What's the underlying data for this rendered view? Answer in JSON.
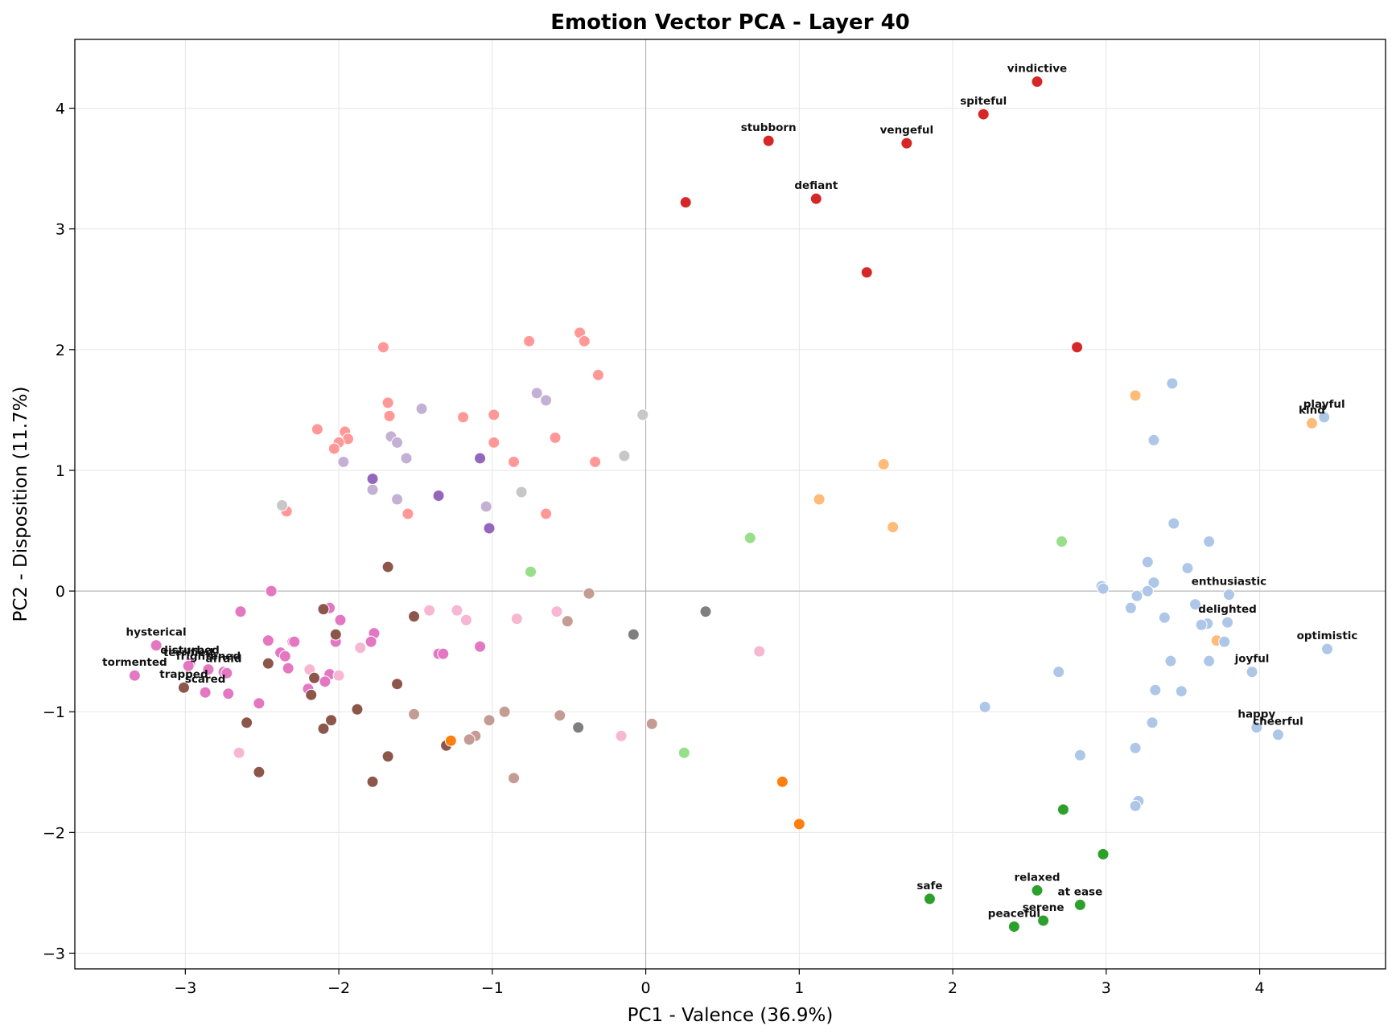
{
  "chart_data": {
    "type": "scatter",
    "title": "Emotion Vector PCA - Layer 40",
    "xlabel": "PC1 - Valence (36.9%)",
    "ylabel": "PC2 - Disposition (11.7%)",
    "xlim": [
      -3.72,
      4.82
    ],
    "ylim": [
      -3.13,
      4.57
    ],
    "xticks": [
      -3,
      -2,
      -1,
      0,
      1,
      2,
      3,
      4
    ],
    "yticks": [
      -3,
      -2,
      -1,
      0,
      1,
      2,
      3,
      4
    ],
    "grid": true,
    "zero_lines": true,
    "colors": {
      "red": "#d62728",
      "lightred": "#ff9896",
      "lightpurple": "#c5b0d5",
      "purple": "#9467bd",
      "pink": "#e377c2",
      "lightpink": "#f7b6d2",
      "brown": "#8c564b",
      "lightbrown": "#c49c94",
      "gray": "#7f7f7f",
      "lightgray": "#c7c7c7",
      "orange": "#ff7f0e",
      "lightorange": "#ffbb78",
      "green": "#2ca02c",
      "lightgreen": "#98df8a",
      "lightblue": "#aec7e8"
    },
    "points": [
      {
        "x": 2.55,
        "y": 4.22,
        "c": "red",
        "label": "vindictive"
      },
      {
        "x": 2.2,
        "y": 3.95,
        "c": "red",
        "label": "spiteful"
      },
      {
        "x": 0.8,
        "y": 3.73,
        "c": "red",
        "label": "stubborn"
      },
      {
        "x": 1.7,
        "y": 3.71,
        "c": "red",
        "label": "vengeful"
      },
      {
        "x": 1.11,
        "y": 3.25,
        "c": "red",
        "label": "defiant"
      },
      {
        "x": 0.26,
        "y": 3.22,
        "c": "red"
      },
      {
        "x": 1.44,
        "y": 2.64,
        "c": "red"
      },
      {
        "x": 2.81,
        "y": 2.02,
        "c": "red"
      },
      {
        "x": -1.71,
        "y": 2.02,
        "c": "lightred"
      },
      {
        "x": -0.76,
        "y": 2.07,
        "c": "lightred"
      },
      {
        "x": -0.43,
        "y": 2.14,
        "c": "lightred"
      },
      {
        "x": -0.4,
        "y": 2.07,
        "c": "lightred"
      },
      {
        "x": -0.31,
        "y": 1.79,
        "c": "lightred"
      },
      {
        "x": -1.68,
        "y": 1.56,
        "c": "lightred"
      },
      {
        "x": -1.67,
        "y": 1.45,
        "c": "lightred"
      },
      {
        "x": -1.19,
        "y": 1.44,
        "c": "lightred"
      },
      {
        "x": -0.99,
        "y": 1.46,
        "c": "lightred"
      },
      {
        "x": -2.14,
        "y": 1.34,
        "c": "lightred"
      },
      {
        "x": -1.96,
        "y": 1.32,
        "c": "lightred"
      },
      {
        "x": -1.94,
        "y": 1.26,
        "c": "lightred"
      },
      {
        "x": -2.0,
        "y": 1.23,
        "c": "lightred"
      },
      {
        "x": -2.03,
        "y": 1.18,
        "c": "lightred"
      },
      {
        "x": -0.99,
        "y": 1.23,
        "c": "lightred"
      },
      {
        "x": -0.59,
        "y": 1.27,
        "c": "lightred"
      },
      {
        "x": -0.86,
        "y": 1.07,
        "c": "lightred"
      },
      {
        "x": -0.33,
        "y": 1.07,
        "c": "lightred"
      },
      {
        "x": -2.34,
        "y": 0.66,
        "c": "lightred"
      },
      {
        "x": -1.55,
        "y": 0.64,
        "c": "lightred"
      },
      {
        "x": -0.65,
        "y": 0.64,
        "c": "lightred"
      },
      {
        "x": -0.71,
        "y": 1.64,
        "c": "lightpurple"
      },
      {
        "x": -0.65,
        "y": 1.58,
        "c": "lightpurple"
      },
      {
        "x": -1.46,
        "y": 1.51,
        "c": "lightpurple"
      },
      {
        "x": -1.66,
        "y": 1.28,
        "c": "lightpurple"
      },
      {
        "x": -1.62,
        "y": 1.23,
        "c": "lightpurple"
      },
      {
        "x": -1.56,
        "y": 1.1,
        "c": "lightpurple"
      },
      {
        "x": -1.97,
        "y": 1.07,
        "c": "lightpurple"
      },
      {
        "x": -1.78,
        "y": 0.84,
        "c": "lightpurple"
      },
      {
        "x": -1.62,
        "y": 0.76,
        "c": "lightpurple"
      },
      {
        "x": -1.04,
        "y": 0.7,
        "c": "lightpurple"
      },
      {
        "x": -1.08,
        "y": 1.1,
        "c": "purple"
      },
      {
        "x": -1.78,
        "y": 0.93,
        "c": "purple"
      },
      {
        "x": -1.35,
        "y": 0.79,
        "c": "purple"
      },
      {
        "x": -1.02,
        "y": 0.52,
        "c": "purple"
      },
      {
        "x": -0.02,
        "y": 1.46,
        "c": "lightgray"
      },
      {
        "x": -0.14,
        "y": 1.12,
        "c": "lightgray"
      },
      {
        "x": -0.81,
        "y": 0.82,
        "c": "lightgray"
      },
      {
        "x": -2.37,
        "y": 0.71,
        "c": "lightgray"
      },
      {
        "x": -3.19,
        "y": -0.45,
        "c": "pink",
        "label": "hysterical"
      },
      {
        "x": -2.97,
        "y": -0.6,
        "c": "pink",
        "label": "disturbed"
      },
      {
        "x": -2.98,
        "y": -0.62,
        "c": "pink",
        "label": "terrified"
      },
      {
        "x": -2.85,
        "y": -0.65,
        "c": "pink",
        "label": "frightened"
      },
      {
        "x": -2.75,
        "y": -0.67,
        "c": "pink",
        "label": "afraid"
      },
      {
        "x": -3.33,
        "y": -0.7,
        "c": "pink",
        "label": "tormented"
      },
      {
        "x": -2.87,
        "y": -0.84,
        "c": "pink",
        "label": "scared"
      },
      {
        "x": -2.44,
        "y": 0.0,
        "c": "pink"
      },
      {
        "x": -2.64,
        "y": -0.17,
        "c": "pink"
      },
      {
        "x": -2.06,
        "y": -0.14,
        "c": "pink"
      },
      {
        "x": -1.99,
        "y": -0.24,
        "c": "pink"
      },
      {
        "x": -1.77,
        "y": -0.35,
        "c": "pink"
      },
      {
        "x": -2.46,
        "y": -0.41,
        "c": "pink"
      },
      {
        "x": -2.3,
        "y": -0.42,
        "c": "pink"
      },
      {
        "x": -2.29,
        "y": -0.42,
        "c": "pink"
      },
      {
        "x": -2.02,
        "y": -0.42,
        "c": "pink"
      },
      {
        "x": -1.79,
        "y": -0.42,
        "c": "pink"
      },
      {
        "x": -2.38,
        "y": -0.51,
        "c": "pink"
      },
      {
        "x": -2.35,
        "y": -0.54,
        "c": "pink"
      },
      {
        "x": -1.35,
        "y": -0.52,
        "c": "pink"
      },
      {
        "x": -1.32,
        "y": -0.52,
        "c": "pink"
      },
      {
        "x": -1.08,
        "y": -0.46,
        "c": "pink"
      },
      {
        "x": -2.33,
        "y": -0.64,
        "c": "pink"
      },
      {
        "x": -2.06,
        "y": -0.69,
        "c": "pink"
      },
      {
        "x": -2.73,
        "y": -0.68,
        "c": "pink"
      },
      {
        "x": -2.09,
        "y": -0.75,
        "c": "pink"
      },
      {
        "x": -2.2,
        "y": -0.81,
        "c": "pink"
      },
      {
        "x": -2.72,
        "y": -0.85,
        "c": "pink"
      },
      {
        "x": -2.52,
        "y": -0.93,
        "c": "pink"
      },
      {
        "x": -1.41,
        "y": -0.16,
        "c": "lightpink"
      },
      {
        "x": -1.23,
        "y": -0.16,
        "c": "lightpink"
      },
      {
        "x": -1.17,
        "y": -0.24,
        "c": "lightpink"
      },
      {
        "x": -0.84,
        "y": -0.23,
        "c": "lightpink"
      },
      {
        "x": -0.58,
        "y": -0.17,
        "c": "lightpink"
      },
      {
        "x": -1.86,
        "y": -0.47,
        "c": "lightpink"
      },
      {
        "x": -2.19,
        "y": -0.65,
        "c": "lightpink"
      },
      {
        "x": -2.0,
        "y": -0.7,
        "c": "lightpink"
      },
      {
        "x": 0.74,
        "y": -0.5,
        "c": "lightpink"
      },
      {
        "x": -0.16,
        "y": -1.2,
        "c": "lightpink"
      },
      {
        "x": -2.65,
        "y": -1.34,
        "c": "lightpink"
      },
      {
        "x": -1.68,
        "y": 0.2,
        "c": "brown"
      },
      {
        "x": -2.1,
        "y": -0.15,
        "c": "brown"
      },
      {
        "x": -1.51,
        "y": -0.21,
        "c": "brown"
      },
      {
        "x": -2.02,
        "y": -0.36,
        "c": "brown"
      },
      {
        "x": -2.46,
        "y": -0.6,
        "c": "brown"
      },
      {
        "x": -2.16,
        "y": -0.72,
        "c": "brown"
      },
      {
        "x": -1.62,
        "y": -0.77,
        "c": "brown"
      },
      {
        "x": -3.01,
        "y": -0.8,
        "c": "brown",
        "label": "trapped"
      },
      {
        "x": -2.18,
        "y": -0.86,
        "c": "brown"
      },
      {
        "x": -1.88,
        "y": -0.98,
        "c": "brown"
      },
      {
        "x": -2.6,
        "y": -1.09,
        "c": "brown"
      },
      {
        "x": -2.05,
        "y": -1.07,
        "c": "brown"
      },
      {
        "x": -2.1,
        "y": -1.14,
        "c": "brown"
      },
      {
        "x": -1.3,
        "y": -1.28,
        "c": "brown"
      },
      {
        "x": -1.68,
        "y": -1.37,
        "c": "brown"
      },
      {
        "x": -2.52,
        "y": -1.5,
        "c": "brown"
      },
      {
        "x": -1.78,
        "y": -1.58,
        "c": "brown"
      },
      {
        "x": -0.37,
        "y": -0.02,
        "c": "lightbrown"
      },
      {
        "x": -0.51,
        "y": -0.25,
        "c": "lightbrown"
      },
      {
        "x": -1.51,
        "y": -1.02,
        "c": "lightbrown"
      },
      {
        "x": -0.92,
        "y": -1.0,
        "c": "lightbrown"
      },
      {
        "x": -0.56,
        "y": -1.03,
        "c": "lightbrown"
      },
      {
        "x": -1.02,
        "y": -1.07,
        "c": "lightbrown"
      },
      {
        "x": 0.04,
        "y": -1.1,
        "c": "lightbrown"
      },
      {
        "x": -1.11,
        "y": -1.2,
        "c": "lightbrown"
      },
      {
        "x": -1.15,
        "y": -1.23,
        "c": "lightbrown"
      },
      {
        "x": -0.86,
        "y": -1.55,
        "c": "lightbrown"
      },
      {
        "x": 0.39,
        "y": -0.17,
        "c": "gray"
      },
      {
        "x": -0.08,
        "y": -0.36,
        "c": "gray"
      },
      {
        "x": -0.44,
        "y": -1.13,
        "c": "gray"
      },
      {
        "x": -1.27,
        "y": -1.24,
        "c": "orange"
      },
      {
        "x": 0.89,
        "y": -1.58,
        "c": "orange"
      },
      {
        "x": 1.0,
        "y": -1.93,
        "c": "orange"
      },
      {
        "x": 3.19,
        "y": 1.62,
        "c": "lightorange"
      },
      {
        "x": 4.34,
        "y": 1.39,
        "c": "lightorange",
        "label": "kind"
      },
      {
        "x": 1.55,
        "y": 1.05,
        "c": "lightorange"
      },
      {
        "x": 1.13,
        "y": 0.76,
        "c": "lightorange"
      },
      {
        "x": 1.61,
        "y": 0.53,
        "c": "lightorange"
      },
      {
        "x": 3.72,
        "y": -0.41,
        "c": "lightorange"
      },
      {
        "x": 0.68,
        "y": 0.44,
        "c": "lightgreen"
      },
      {
        "x": 2.71,
        "y": 0.41,
        "c": "lightgreen"
      },
      {
        "x": -0.75,
        "y": 0.16,
        "c": "lightgreen"
      },
      {
        "x": 0.25,
        "y": -1.34,
        "c": "lightgreen"
      },
      {
        "x": 2.72,
        "y": -1.81,
        "c": "green"
      },
      {
        "x": 2.98,
        "y": -2.18,
        "c": "green"
      },
      {
        "x": 1.85,
        "y": -2.55,
        "c": "green",
        "label": "safe"
      },
      {
        "x": 2.55,
        "y": -2.48,
        "c": "green",
        "label": "relaxed"
      },
      {
        "x": 2.83,
        "y": -2.6,
        "c": "green",
        "label": "at ease"
      },
      {
        "x": 2.59,
        "y": -2.73,
        "c": "green",
        "label": "serene"
      },
      {
        "x": 2.4,
        "y": -2.78,
        "c": "green",
        "label": "peaceful"
      },
      {
        "x": 4.42,
        "y": 1.44,
        "c": "lightblue",
        "label": "playful"
      },
      {
        "x": 4.44,
        "y": -0.48,
        "c": "lightblue",
        "label": "optimistic"
      },
      {
        "x": 3.8,
        "y": -0.03,
        "c": "lightblue",
        "label": "enthusiastic"
      },
      {
        "x": 3.79,
        "y": -0.26,
        "c": "lightblue",
        "label": "delighted"
      },
      {
        "x": 3.95,
        "y": -0.67,
        "c": "lightblue",
        "label": "joyful"
      },
      {
        "x": 3.98,
        "y": -1.13,
        "c": "lightblue",
        "label": "happy"
      },
      {
        "x": 4.12,
        "y": -1.19,
        "c": "lightblue",
        "label": "cheerful"
      },
      {
        "x": 3.43,
        "y": 1.72,
        "c": "lightblue"
      },
      {
        "x": 3.31,
        "y": 1.25,
        "c": "lightblue"
      },
      {
        "x": 3.44,
        "y": 0.56,
        "c": "lightblue"
      },
      {
        "x": 3.67,
        "y": 0.41,
        "c": "lightblue"
      },
      {
        "x": 3.27,
        "y": 0.24,
        "c": "lightblue"
      },
      {
        "x": 3.53,
        "y": 0.19,
        "c": "lightblue"
      },
      {
        "x": 3.31,
        "y": 0.07,
        "c": "lightblue"
      },
      {
        "x": 2.97,
        "y": 0.04,
        "c": "lightblue"
      },
      {
        "x": 2.98,
        "y": 0.02,
        "c": "lightblue"
      },
      {
        "x": 3.27,
        "y": 0.0,
        "c": "lightblue"
      },
      {
        "x": 3.2,
        "y": -0.04,
        "c": "lightblue"
      },
      {
        "x": 3.58,
        "y": -0.11,
        "c": "lightblue"
      },
      {
        "x": 3.16,
        "y": -0.14,
        "c": "lightblue"
      },
      {
        "x": 3.38,
        "y": -0.22,
        "c": "lightblue"
      },
      {
        "x": 3.66,
        "y": -0.27,
        "c": "lightblue"
      },
      {
        "x": 3.62,
        "y": -0.28,
        "c": "lightblue"
      },
      {
        "x": 3.77,
        "y": -0.42,
        "c": "lightblue"
      },
      {
        "x": 3.42,
        "y": -0.58,
        "c": "lightblue"
      },
      {
        "x": 3.67,
        "y": -0.58,
        "c": "lightblue"
      },
      {
        "x": 2.69,
        "y": -0.67,
        "c": "lightblue"
      },
      {
        "x": 3.32,
        "y": -0.82,
        "c": "lightblue"
      },
      {
        "x": 3.49,
        "y": -0.83,
        "c": "lightblue"
      },
      {
        "x": 2.21,
        "y": -0.96,
        "c": "lightblue"
      },
      {
        "x": 3.3,
        "y": -1.09,
        "c": "lightblue"
      },
      {
        "x": 3.19,
        "y": -1.3,
        "c": "lightblue"
      },
      {
        "x": 2.83,
        "y": -1.36,
        "c": "lightblue"
      },
      {
        "x": 3.21,
        "y": -1.74,
        "c": "lightblue"
      },
      {
        "x": 3.19,
        "y": -1.78,
        "c": "lightblue"
      }
    ]
  }
}
